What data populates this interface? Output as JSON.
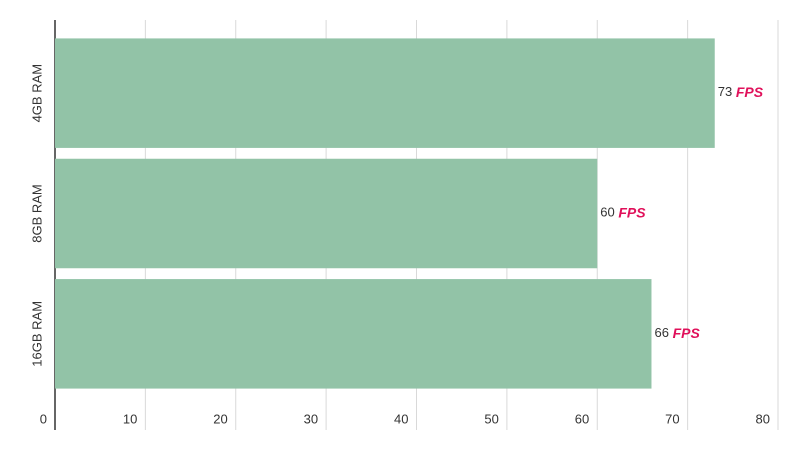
{
  "chart_data": {
    "type": "bar",
    "orientation": "horizontal",
    "categories": [
      "4GB RAM",
      "8GB RAM",
      "16GB RAM"
    ],
    "values": [
      73,
      60,
      66
    ],
    "unit": "FPS",
    "color": "#92c3a7",
    "xlim": [
      0,
      80
    ],
    "xticks": [
      0,
      10,
      20,
      30,
      40,
      50,
      60,
      70,
      80
    ],
    "grid": true
  }
}
